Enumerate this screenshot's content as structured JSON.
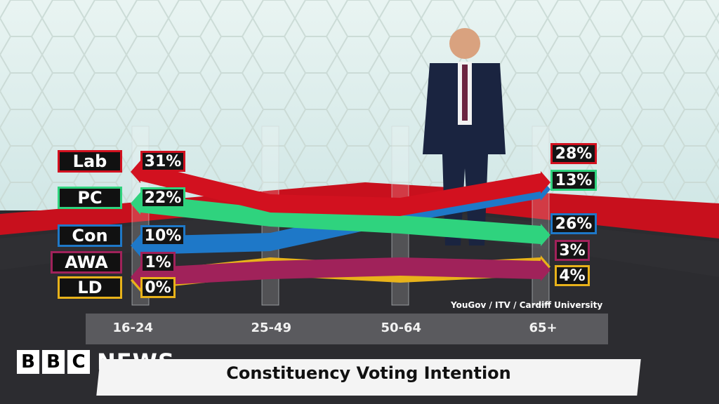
{
  "chart_data": {
    "type": "line",
    "title": "Constituency Voting Intention",
    "source": "YouGov / ITV / Cardiff University",
    "categories": [
      "16-24",
      "25-49",
      "50-64",
      "65+"
    ],
    "series": [
      {
        "name": "Lab",
        "color": "#d2111f",
        "values": [
          31,
          22,
          21,
          28
        ],
        "start_label": "31%",
        "end_label": "28%"
      },
      {
        "name": "PC",
        "color": "#2fd37e",
        "values": [
          22,
          18,
          16,
          13
        ],
        "start_label": "22%",
        "end_label": "13%"
      },
      {
        "name": "Con",
        "color": "#1e78c8",
        "values": [
          10,
          11,
          19,
          26
        ],
        "start_label": "10%",
        "end_label": "26%"
      },
      {
        "name": "AWA",
        "color": "#a0225a",
        "values": [
          1,
          3,
          4,
          3
        ],
        "start_label": "1%",
        "end_label": "3%"
      },
      {
        "name": "LD",
        "color": "#e8b21a",
        "values": [
          0,
          4,
          2,
          4
        ],
        "start_label": "0%",
        "end_label": "4%"
      }
    ]
  },
  "branding": {
    "bbc": [
      "B",
      "B",
      "C"
    ],
    "news": "NEWS"
  }
}
